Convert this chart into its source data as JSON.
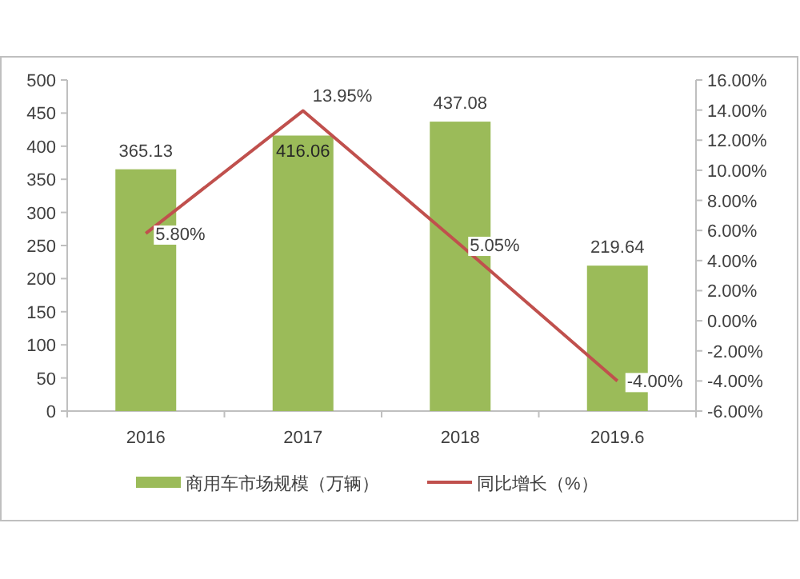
{
  "chart_data": {
    "type": "bar",
    "categories": [
      "2016",
      "2017",
      "2018",
      "2019.6"
    ],
    "series": [
      {
        "name": "商用车市场规模（万辆）",
        "color": "#9bbb59",
        "values": [
          365.13,
          416.06,
          437.08,
          219.64
        ],
        "value_labels": [
          "365.13",
          "416.06",
          "437.08",
          "219.64"
        ]
      },
      {
        "name": "同比增长（%）",
        "type": "line",
        "axis": "y2",
        "color": "#c0504d",
        "values": [
          5.8,
          13.95,
          5.05,
          -4.0
        ],
        "value_labels": [
          "5.80%",
          "13.95%",
          "5.05%",
          "-4.00%"
        ]
      }
    ],
    "ylim": [
      0,
      500
    ],
    "yticks": [
      0,
      50,
      100,
      150,
      200,
      250,
      300,
      350,
      400,
      450,
      500
    ],
    "y2lim": [
      -6,
      16
    ],
    "y2ticks": [
      {
        "value": -6,
        "label": "-6.00%"
      },
      {
        "value": -4,
        "label": "-4.00%"
      },
      {
        "value": -2,
        "label": "-2.00%"
      },
      {
        "value": 0,
        "label": "0.00%"
      },
      {
        "value": 2,
        "label": "2.00%"
      },
      {
        "value": 4,
        "label": "4.00%"
      },
      {
        "value": 6,
        "label": "6.00%"
      },
      {
        "value": 8,
        "label": "8.00%"
      },
      {
        "value": 10,
        "label": "10.00%"
      },
      {
        "value": 12,
        "label": "12.00%"
      },
      {
        "value": 14,
        "label": "14.00%"
      },
      {
        "value": 16,
        "label": "16.00%"
      }
    ],
    "legend": "bottom",
    "grid": false
  }
}
